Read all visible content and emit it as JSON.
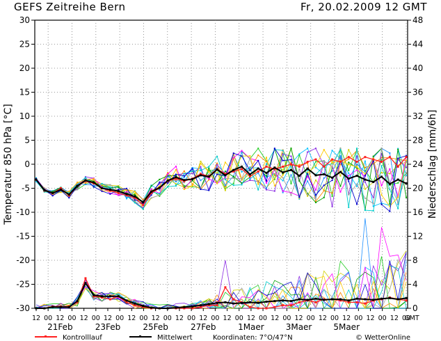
{
  "header": {
    "title": "GEFS  Zeitreihe Bern",
    "date": "Fr, 20.02.2009 12 GMT"
  },
  "footer": {
    "legend_control": "Kontrolllauf",
    "legend_mean": "Mittelwert",
    "coordinates": "Koordinaten:  7°O/47°N",
    "credit": "© WetterOnline"
  },
  "colors": {
    "control": "#ff2020",
    "mean": "#000000",
    "members": [
      "#00c0ff",
      "#22cc22",
      "#d0d000",
      "#ff8800",
      "#8a2be2",
      "#1e90ff",
      "#00a000",
      "#ff00ff",
      "#a0a0a0",
      "#00cccc",
      "#ffcc00",
      "#0000cc"
    ]
  },
  "chart_data": {
    "type": "line",
    "title": "GEFS  Zeitreihe Bern",
    "ylabel": "Temperatur 850 hPa [°C]",
    "y2label": "Niederschlag [mm/6h]",
    "ylim": [
      -30,
      30
    ],
    "y2lim": [
      0,
      48
    ],
    "yticks": [
      30,
      25,
      20,
      15,
      10,
      5,
      0,
      -5,
      -10,
      -15,
      -20,
      -25,
      -30
    ],
    "y2ticks": [
      48,
      44,
      40,
      36,
      32,
      28,
      24,
      20,
      16,
      12,
      8,
      4,
      0
    ],
    "x_hour_ticks": [
      "12",
      "00",
      "12",
      "00",
      "12",
      "00",
      "12",
      "00",
      "12",
      "00",
      "12",
      "00",
      "12",
      "00",
      "12",
      "00",
      "12",
      "00",
      "12",
      "00",
      "12",
      "00",
      "12",
      "00",
      "12",
      "00",
      "12",
      "00",
      "12",
      "00",
      "12",
      "00",
      "GMT"
    ],
    "date_labels": [
      "21Feb",
      "23Feb",
      "25Feb",
      "27Feb",
      "1Maer",
      "3Maer",
      "5Maer"
    ],
    "grid": true,
    "series": [
      {
        "name": "Kontrolllauf",
        "role": "temperature",
        "values": [
          -3.2,
          -5.5,
          -6,
          -5,
          -6.5,
          -4.5,
          -3.5,
          -4,
          -5,
          -5.5,
          -6,
          -6.5,
          -7,
          -8.5,
          -6,
          -5,
          -3.5,
          -3,
          -3.5,
          -3,
          -2,
          -2.5,
          -1,
          -2,
          -1.5,
          -1,
          -2.5,
          -1.5,
          -0.5,
          -1,
          -0.5,
          0,
          -0.5,
          0.5,
          1,
          -0.5,
          1,
          0.5,
          1.5,
          0.5,
          1.5,
          1,
          0.5,
          1.5,
          -0.5,
          1.5
        ]
      },
      {
        "name": "Mittelwert",
        "role": "temperature",
        "values": [
          -3.2,
          -5.4,
          -6,
          -5.3,
          -6.3,
          -4.5,
          -3.4,
          -3.8,
          -5,
          -5.3,
          -5.6,
          -6.2,
          -6.7,
          -7.9,
          -5.7,
          -4.9,
          -3.4,
          -2.7,
          -3.3,
          -3.1,
          -2.3,
          -2.6,
          -1.1,
          -2.3,
          -1.2,
          -0.5,
          -2.1,
          -0.9,
          -1.8,
          -0.7,
          -1.7,
          -1.2,
          -2.4,
          -0.9,
          -2.3,
          -2.1,
          -2.8,
          -1.6,
          -3,
          -2.4,
          -3.2,
          -3.7,
          -2.6,
          -4.1,
          -3.2,
          -4
        ]
      },
      {
        "name": "Kontrolllauf",
        "role": "precipitation",
        "values": [
          0,
          0,
          0.3,
          0.3,
          0.3,
          1,
          5,
          2,
          1.8,
          1.5,
          2,
          1,
          0.5,
          0.2,
          0,
          0,
          0,
          0,
          0,
          0,
          0.2,
          0.5,
          0.5,
          3.5,
          1.5,
          1,
          0.2,
          0,
          0,
          0.2,
          0.5,
          0.5,
          1,
          1.3,
          1,
          1.5,
          1.5,
          1.3,
          1,
          1,
          0.8,
          1.3,
          1.5,
          1.8,
          1.5,
          1.3
        ]
      },
      {
        "name": "Mittelwert",
        "role": "precipitation",
        "values": [
          0,
          0,
          0.2,
          0.2,
          0.2,
          1.2,
          4.2,
          2.2,
          2,
          2,
          2,
          1.3,
          0.8,
          0.4,
          0.1,
          0,
          0,
          0.1,
          0.2,
          0.3,
          0.5,
          0.7,
          0.9,
          1,
          0.8,
          0.9,
          1,
          0.9,
          1.1,
          1.2,
          1.3,
          1.2,
          1.5,
          1.4,
          1.6,
          1.4,
          1.5,
          1.5,
          1.3,
          1.6,
          1.5,
          1.4,
          1.6,
          1.7,
          1.5,
          1.7
        ]
      }
    ]
  }
}
